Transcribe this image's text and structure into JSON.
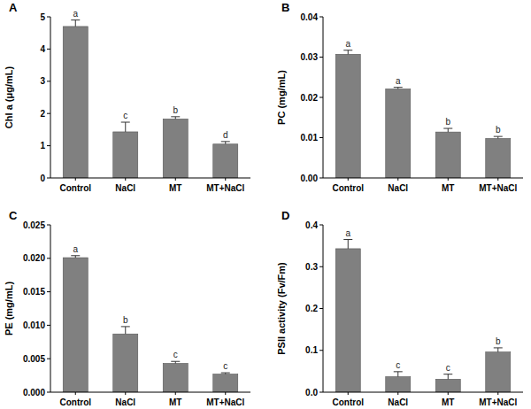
{
  "chart_data": [
    {
      "type": "bar",
      "title": "A",
      "y_label": "Chl a (μg/mL)",
      "categories": [
        "Control",
        "NaCl",
        "MT",
        "MT+NaCl"
      ],
      "values": [
        4.7,
        1.43,
        1.83,
        1.05
      ],
      "errors": [
        0.2,
        0.3,
        0.07,
        0.08
      ],
      "annotations": [
        "a",
        "c",
        "b",
        "d"
      ],
      "color": "#808080",
      "ylim": [
        0,
        5
      ],
      "yticks": [
        0,
        1,
        2,
        3,
        4,
        5
      ]
    },
    {
      "type": "bar",
      "title": "B",
      "y_label": "PC (mg/mL)",
      "categories": [
        "Control",
        "NaCl",
        "MT",
        "MT+NaCl"
      ],
      "values": [
        0.0307,
        0.0221,
        0.0114,
        0.0098
      ],
      "errors": [
        0.001,
        0.0004,
        0.0009,
        0.0005
      ],
      "annotations": [
        "a",
        "a",
        "b",
        "b"
      ],
      "color": "#808080",
      "ylim": [
        0,
        0.04
      ],
      "yticks": [
        {
          "value": 0,
          "label": "0.00"
        },
        {
          "value": 0.01,
          "label": "0.01"
        },
        {
          "value": 0.02,
          "label": "0.02"
        },
        {
          "value": 0.03,
          "label": "0.03"
        },
        {
          "value": 0.04,
          "label": "0.04"
        }
      ]
    },
    {
      "type": "bar",
      "title": "C",
      "y_label": "PE (mg/mL)",
      "categories": [
        "Control",
        "NaCl",
        "MT",
        "MT+NaCl"
      ],
      "values": [
        0.0201,
        0.0087,
        0.0043,
        0.0027
      ],
      "errors": [
        0.0003,
        0.0011,
        0.0003,
        0.0002
      ],
      "annotations": [
        "a",
        "b",
        "c",
        "c"
      ],
      "color": "#808080",
      "ylim": [
        0,
        0.025
      ],
      "yticks": [
        {
          "value": 0,
          "label": "0.000"
        },
        {
          "value": 0.005,
          "label": "0.005"
        },
        {
          "value": 0.01,
          "label": "0.010"
        },
        {
          "value": 0.015,
          "label": "0.015"
        },
        {
          "value": 0.02,
          "label": "0.020"
        },
        {
          "value": 0.025,
          "label": "0.025"
        }
      ]
    },
    {
      "type": "bar",
      "title": "D",
      "y_label": "PSII activity (Fv/Fm)",
      "categories": [
        "Control",
        "NaCl",
        "MT",
        "MT+NaCl"
      ],
      "values": [
        0.343,
        0.037,
        0.031,
        0.096
      ],
      "errors": [
        0.022,
        0.012,
        0.012,
        0.01
      ],
      "annotations": [
        "a",
        "c",
        "c",
        "b"
      ],
      "color": "#808080",
      "ylim": [
        0,
        0.4
      ],
      "yticks": [
        {
          "value": 0,
          "label": "0.0"
        },
        {
          "value": 0.1,
          "label": "0.1"
        },
        {
          "value": 0.2,
          "label": "0.2"
        },
        {
          "value": 0.3,
          "label": "0.3"
        },
        {
          "value": 0.4,
          "label": "0.4"
        }
      ]
    }
  ]
}
